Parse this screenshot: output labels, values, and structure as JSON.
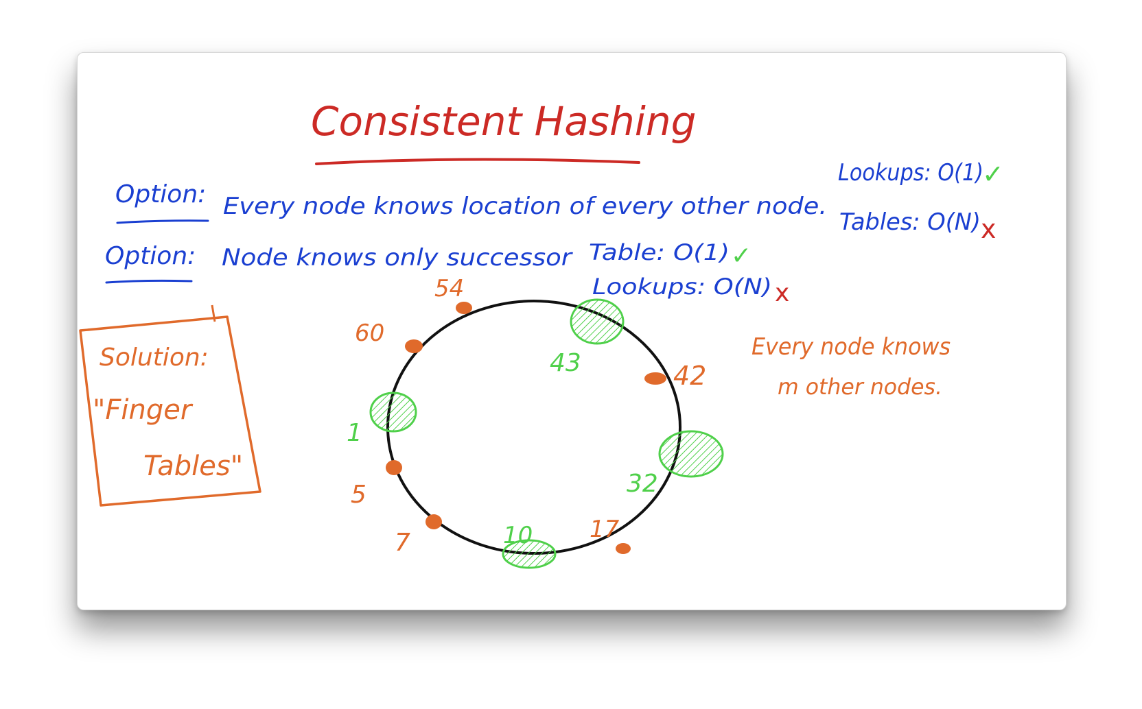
{
  "colors": {
    "title": "#cc2a25",
    "blue": "#1a3fd1",
    "orange": "#e06a2b",
    "green": "#4fd04a",
    "red": "#cc2a25",
    "ring": "#111111"
  },
  "title": "Consistent Hashing",
  "option1": {
    "label": "Option:",
    "text": "Every node knows location of every other node.",
    "tables": "Tables: O(N)",
    "tables_mark": "x",
    "lookups": "Lookups: O(1)",
    "lookups_mark": "✓"
  },
  "option2": {
    "label": "Option:",
    "text": "Node knows only successor",
    "table": "Table: O(1)",
    "table_mark": "✓",
    "lookups": "Lookups: O(N)",
    "lookups_mark": "x"
  },
  "solution": {
    "line1": "Solution:",
    "line2": "\"Finger",
    "line3": "Tables\""
  },
  "note": {
    "line1": "Every node knows",
    "line2": "m other nodes."
  },
  "ring": {
    "nodes": [
      "54",
      "60",
      "1",
      "5",
      "7",
      "10",
      "17",
      "32",
      "42",
      "43"
    ]
  }
}
